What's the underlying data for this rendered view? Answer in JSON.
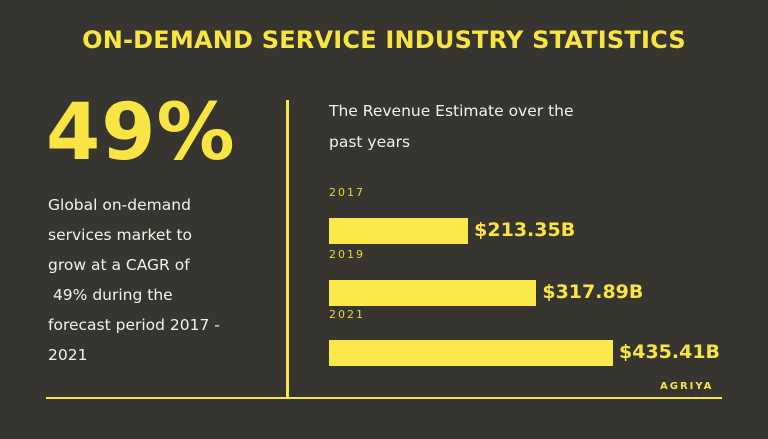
{
  "title": "ON-DEMAND SERVICE INDUSTRY STATISTICS",
  "highlight": {
    "value": "49%",
    "description": "Global on-demand\nservices market to\ngrow at a CAGR of\n 49% during the\nforecast period 2017 -\n2021"
  },
  "brand": "AGRIYA",
  "colors": {
    "background": "#363530",
    "accent": "#f8e443",
    "text": "#f2f1ea"
  },
  "chart_data": {
    "type": "bar",
    "orientation": "horizontal",
    "title": "The Revenue Estimate over the past years",
    "categories": [
      "2017",
      "2019",
      "2021"
    ],
    "values": [
      213.35,
      317.89,
      435.41
    ],
    "labels": [
      "$213.35B",
      "$317.89B",
      "$435.41B"
    ],
    "unit": "USD billions",
    "xlabel": "",
    "ylabel": "",
    "grid": false,
    "legend": "none"
  }
}
